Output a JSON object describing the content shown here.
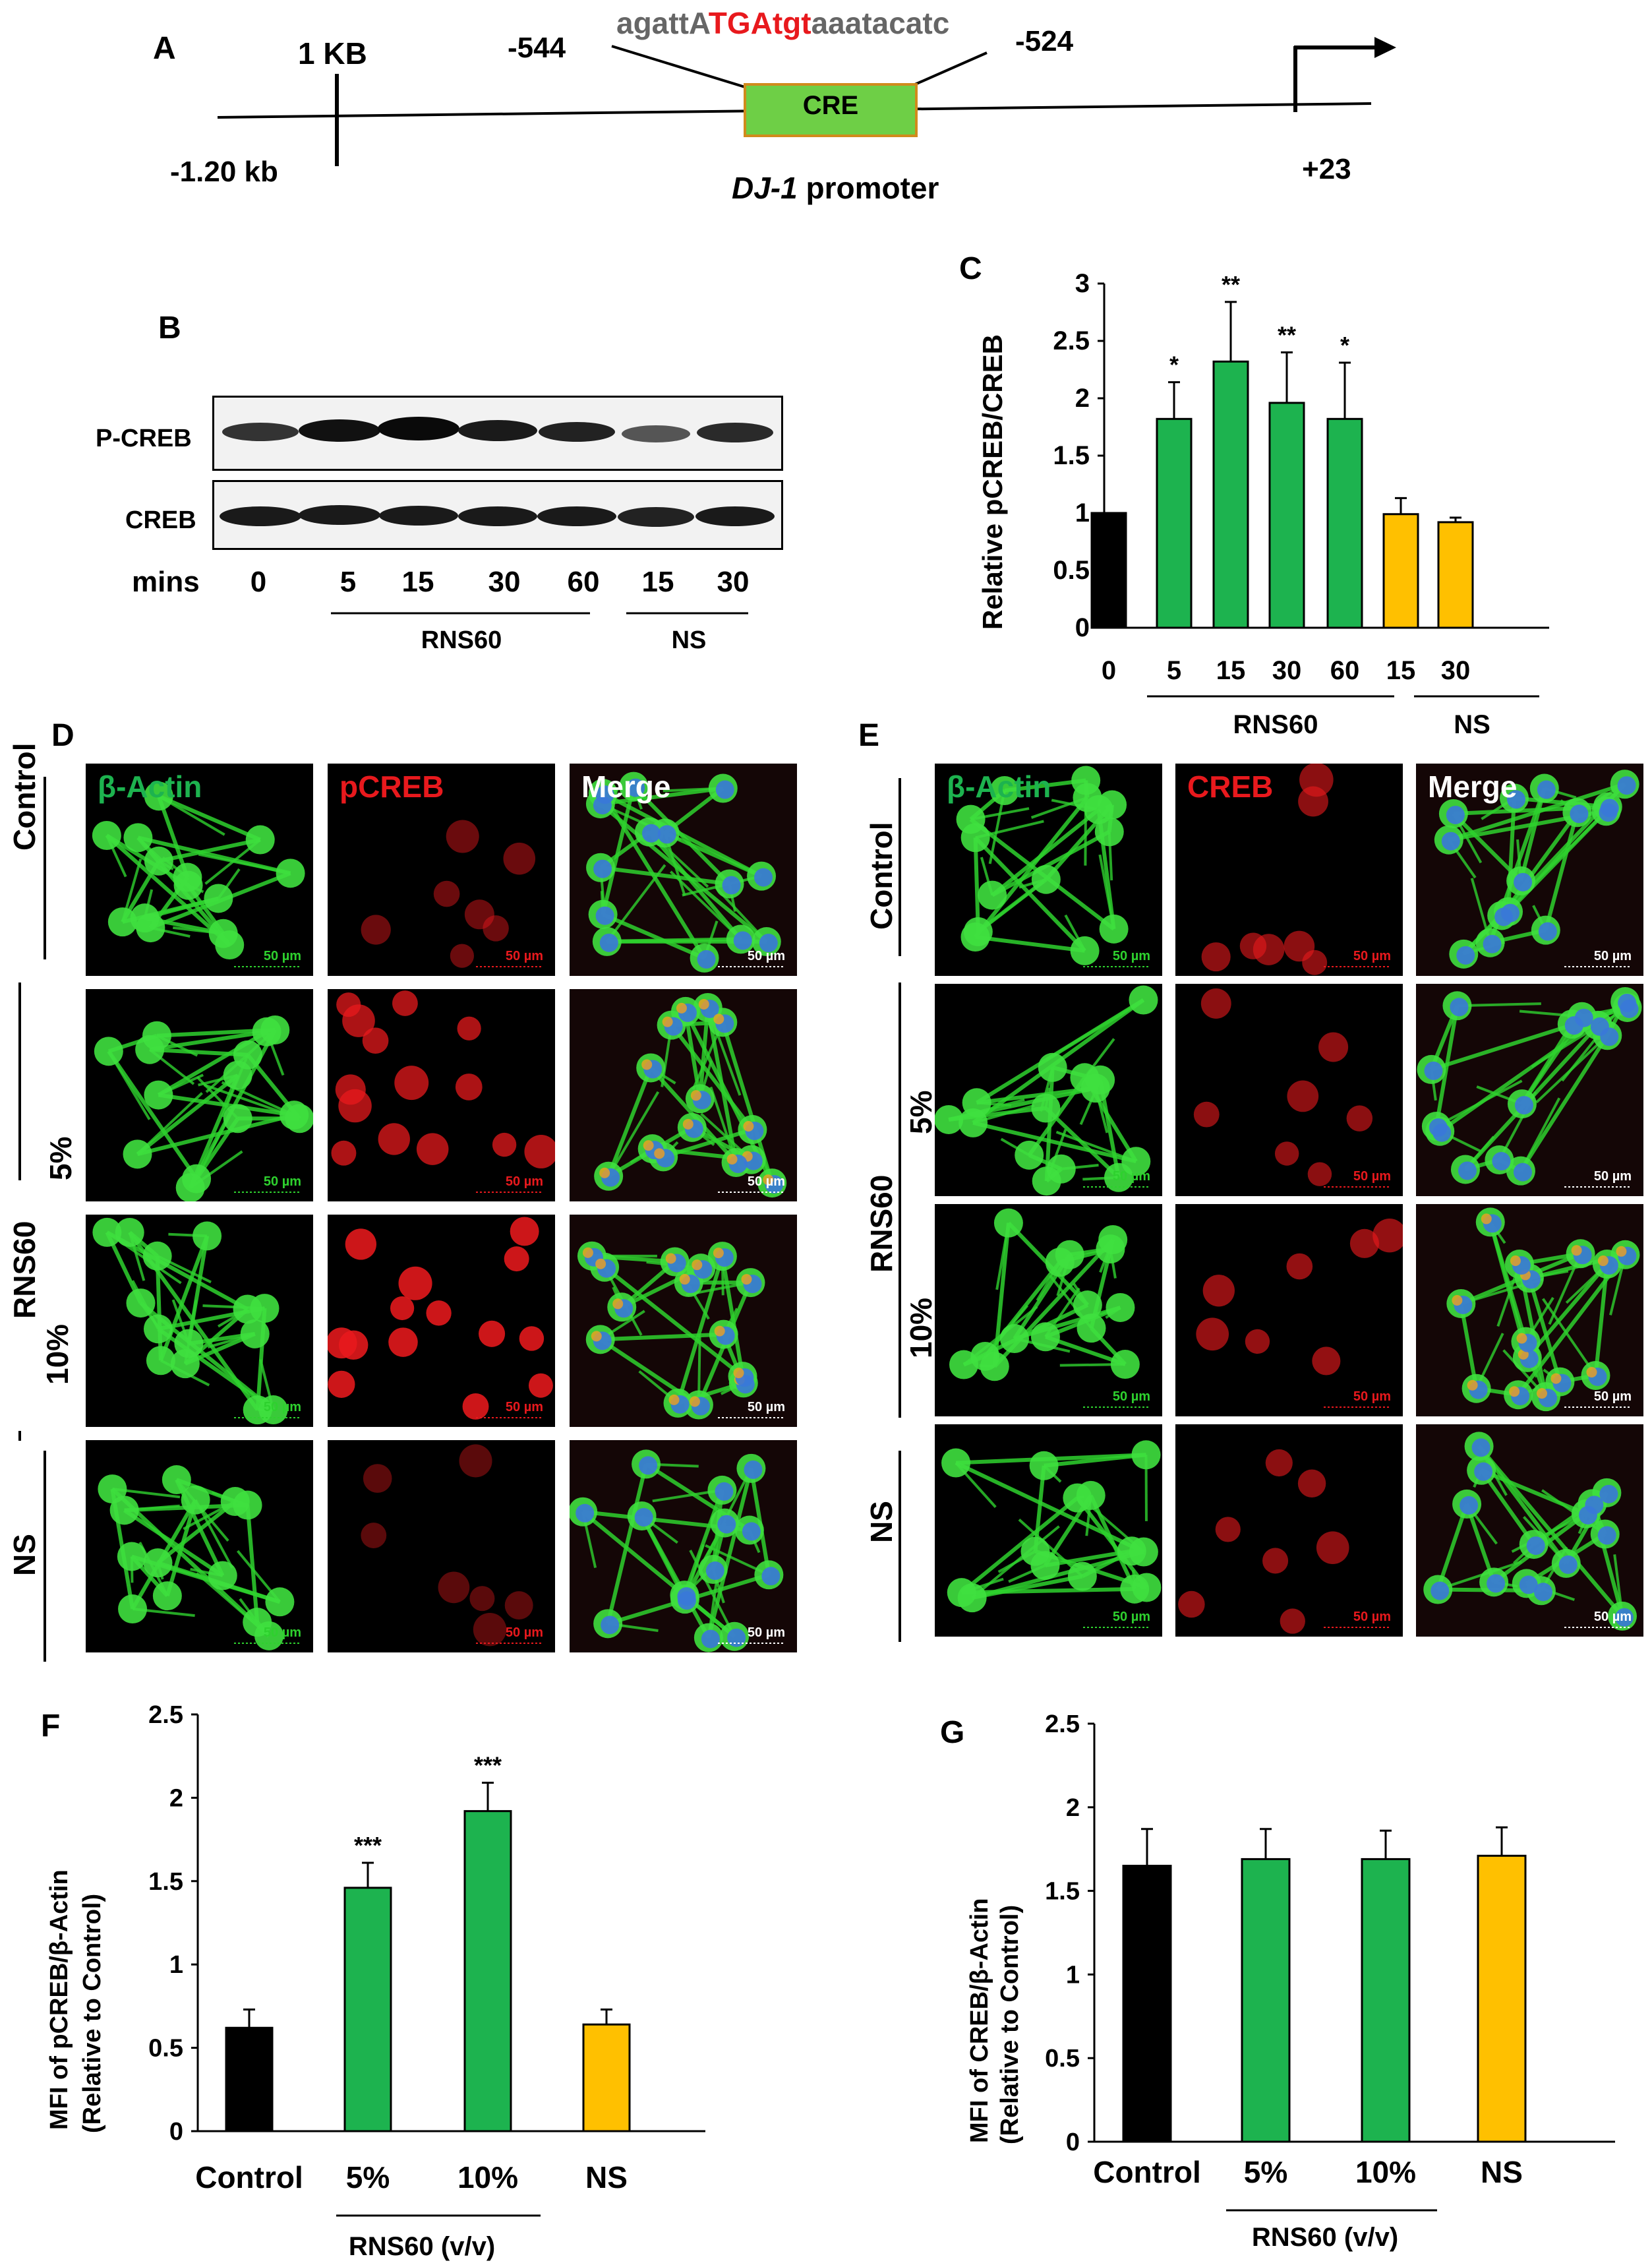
{
  "panel_a": {
    "letter": "A",
    "scale_label": "1 KB",
    "pos_left": "-544",
    "pos_right": "-524",
    "seq_parts": [
      {
        "text": "agattA",
        "color": "#666666"
      },
      {
        "text": "TGA",
        "color": "#e8191d"
      },
      {
        "text": "tgt",
        "color": "#e8191d"
      },
      {
        "text": "aaatacatc",
        "color": "#666666"
      }
    ],
    "cre_label": "CRE",
    "left_end": "-1.20 kb",
    "right_end": "+23",
    "promoter_label_italic": "DJ-1",
    "promoter_label_rest": " promoter"
  },
  "panel_b": {
    "letter": "B",
    "row_labels": [
      "P-CREB",
      "CREB"
    ],
    "lane_header": "mins",
    "lanes": [
      "0",
      "5",
      "15",
      "30",
      "60",
      "15",
      "30"
    ],
    "group_rns": "RNS60",
    "group_ns": "NS"
  },
  "panel_c": {
    "letter": "C",
    "chart_data": {
      "type": "bar",
      "categories": [
        "0",
        "5",
        "15",
        "30",
        "60",
        "15",
        "30"
      ],
      "values": [
        1.0,
        1.82,
        2.32,
        1.96,
        1.82,
        0.99,
        0.92
      ],
      "errors": [
        0,
        0.32,
        0.52,
        0.44,
        0.49,
        0.14,
        0.04
      ],
      "significance": [
        "",
        "*",
        "**",
        "**",
        "*",
        "",
        ""
      ],
      "colors": [
        "#000000",
        "#1db34f",
        "#1db34f",
        "#1db34f",
        "#1db34f",
        "#ffc000",
        "#ffc000"
      ],
      "ylabel": "Relative  pCREB/CREB",
      "ylim": [
        0,
        3
      ],
      "yticks": [
        "0",
        "0.5",
        "1",
        "1.5",
        "2",
        "2.5",
        "3"
      ],
      "groups": [
        {
          "label": "RNS60"
        },
        {
          "label": "NS"
        }
      ]
    }
  },
  "panel_d": {
    "letter": "D",
    "headers": [
      {
        "text": "β-Actin",
        "color": "#1db34f"
      },
      {
        "text": "pCREB",
        "color": "#e8191d"
      },
      {
        "text": "Merge",
        "color": "#ffffff"
      }
    ],
    "rows": [
      "Control",
      "5%",
      "10%",
      "NS"
    ],
    "group_label": "RNS60",
    "scale": "50 µm"
  },
  "panel_e": {
    "letter": "E",
    "headers": [
      {
        "text": "β-Actin",
        "color": "#1db34f"
      },
      {
        "text": "CREB",
        "color": "#e8191d"
      },
      {
        "text": "Merge",
        "color": "#ffffff"
      }
    ],
    "rows": [
      "Control",
      "5%",
      "10%",
      "NS"
    ],
    "group_label": "RNS60",
    "scale": "50 µm"
  },
  "panel_f": {
    "letter": "F",
    "chart_data": {
      "type": "bar",
      "categories": [
        "Control",
        "5%",
        "10%",
        "NS"
      ],
      "values": [
        0.62,
        1.46,
        1.92,
        0.64
      ],
      "errors": [
        0.11,
        0.15,
        0.17,
        0.09
      ],
      "significance": [
        "",
        "***",
        "***",
        ""
      ],
      "colors": [
        "#000000",
        "#1db34f",
        "#1db34f",
        "#ffc000"
      ],
      "ylabel_line1": "MFI of pCREB/β-Actin",
      "ylabel_line2": "(Relative to Control)",
      "ylim": [
        0,
        2.5
      ],
      "yticks": [
        "0",
        "0.5",
        "1",
        "1.5",
        "2",
        "2.5"
      ],
      "group_label": "RNS60 (v/v)"
    }
  },
  "panel_g": {
    "letter": "G",
    "chart_data": {
      "type": "bar",
      "categories": [
        "Control",
        "5%",
        "10%",
        "NS"
      ],
      "values": [
        1.65,
        1.69,
        1.69,
        1.71
      ],
      "errors": [
        0.22,
        0.18,
        0.17,
        0.17
      ],
      "significance": [
        "",
        "",
        "",
        ""
      ],
      "colors": [
        "#000000",
        "#1db34f",
        "#1db34f",
        "#ffc000"
      ],
      "ylabel_line1": "MFI of CREB/β-Actin",
      "ylabel_line2": "(Relative to Control)",
      "ylim": [
        0,
        2.5
      ],
      "yticks": [
        "0",
        "0.5",
        "1",
        "1.5",
        "2",
        "2.5"
      ],
      "group_label": "RNS60 (v/v)"
    }
  }
}
